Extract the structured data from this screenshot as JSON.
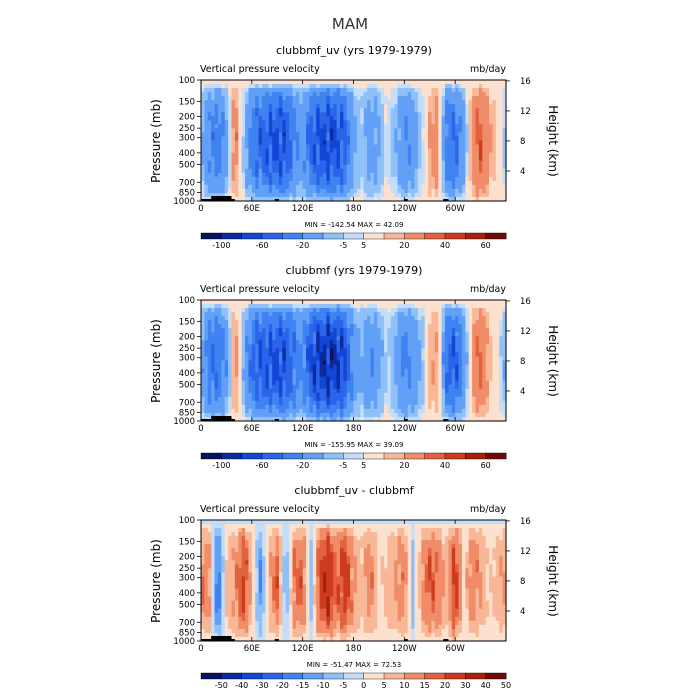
{
  "figure": {
    "title": "MAM"
  },
  "colorbars": {
    "full_fields": {
      "colors": [
        "#08115e",
        "#0a2a9e",
        "#1346d6",
        "#2a64e8",
        "#3f82f2",
        "#62a0f7",
        "#90c0f8",
        "#c4ddf8",
        "#fde1cf",
        "#f8b898",
        "#f08c68",
        "#e2613f",
        "#cd3b1f",
        "#a81e0f",
        "#6e0a07"
      ],
      "tick_labels": [
        "-100",
        "-60",
        "-20",
        "-5",
        "5",
        "20",
        "40",
        "60"
      ],
      "tick_edges": [
        1,
        3,
        5,
        7,
        8,
        10,
        12,
        14
      ]
    },
    "difference": {
      "colors": [
        "#08115e",
        "#0a2a9e",
        "#1346d6",
        "#2a64e8",
        "#3f82f2",
        "#62a0f7",
        "#90c0f8",
        "#c4ddf8",
        "#fde1cf",
        "#f8b898",
        "#f08c68",
        "#e2613f",
        "#cd3b1f",
        "#a81e0f",
        "#6e0a07"
      ],
      "tick_labels": [
        "-50",
        "-40",
        "-30",
        "-20",
        "-15",
        "-10",
        "-5",
        "0",
        "5",
        "10",
        "15",
        "20",
        "30",
        "40",
        "50"
      ],
      "tick_edges": [
        1,
        2,
        3,
        4,
        5,
        6,
        7,
        8,
        9,
        10,
        11,
        12,
        13,
        14,
        15
      ]
    }
  },
  "chart_data": [
    {
      "type": "heatmap",
      "title": "clubbmf_uv (yrs 1979-1979)",
      "subtitle_left": "Vertical pressure velocity",
      "subtitle_right": "mb/day",
      "ylabel": "Pressure (mb)",
      "ylabel_right": "Height (km)",
      "x_tick_labels": [
        "0",
        "60E",
        "120E",
        "180",
        "120W",
        "60W"
      ],
      "x_ticks_deg": [
        0,
        60,
        120,
        180,
        240,
        300
      ],
      "xlim_deg": [
        0,
        360
      ],
      "y_tick_labels": [
        "100",
        "150",
        "200",
        "250",
        "300",
        "400",
        "500",
        "700",
        "850",
        "1000"
      ],
      "y_ticks_mb": [
        100,
        150,
        200,
        250,
        300,
        400,
        500,
        700,
        850,
        1000
      ],
      "ylim_mb": [
        100,
        1000
      ],
      "y_scale": "log",
      "right_tick_labels": [
        "4",
        "8",
        "12",
        "16"
      ],
      "right_ticks_km": [
        4,
        8,
        12,
        16
      ],
      "min_max_text": "MIN = -142.54   MAX =  42.09",
      "colorbar": "full_fields",
      "min": -142.54,
      "max": 42.09,
      "profile_lon": [
        0,
        10,
        20,
        30,
        40,
        50,
        60,
        70,
        80,
        90,
        100,
        110,
        120,
        130,
        140,
        150,
        160,
        170,
        180,
        190,
        200,
        210,
        220,
        230,
        240,
        250,
        260,
        270,
        280,
        290,
        300,
        310,
        320,
        330,
        340,
        350,
        360
      ],
      "profile_value": [
        -20,
        -55,
        -70,
        -40,
        30,
        -15,
        -70,
        -90,
        -100,
        -110,
        -105,
        -60,
        -40,
        -90,
        -110,
        -115,
        -110,
        -90,
        -30,
        -20,
        -45,
        -30,
        -5,
        -25,
        -55,
        -40,
        -15,
        15,
        25,
        -70,
        -85,
        -35,
        20,
        35,
        15,
        5,
        -20
      ]
    },
    {
      "type": "heatmap",
      "title": "clubbmf (yrs 1979-1979)",
      "subtitle_left": "Vertical pressure velocity",
      "subtitle_right": "mb/day",
      "ylabel": "Pressure (mb)",
      "ylabel_right": "Height (km)",
      "x_tick_labels": [
        "0",
        "60E",
        "120E",
        "180",
        "120W",
        "60W"
      ],
      "x_ticks_deg": [
        0,
        60,
        120,
        180,
        240,
        300
      ],
      "xlim_deg": [
        0,
        360
      ],
      "y_tick_labels": [
        "100",
        "150",
        "200",
        "250",
        "300",
        "400",
        "500",
        "700",
        "850",
        "1000"
      ],
      "y_ticks_mb": [
        100,
        150,
        200,
        250,
        300,
        400,
        500,
        700,
        850,
        1000
      ],
      "ylim_mb": [
        100,
        1000
      ],
      "y_scale": "log",
      "right_tick_labels": [
        "4",
        "8",
        "12",
        "16"
      ],
      "right_ticks_km": [
        4,
        8,
        12,
        16
      ],
      "min_max_text": "MIN = -155.95   MAX =  39.09",
      "colorbar": "full_fields",
      "min": -155.95,
      "max": 39.09,
      "profile_lon": [
        0,
        10,
        20,
        30,
        40,
        50,
        60,
        70,
        80,
        90,
        100,
        110,
        120,
        130,
        140,
        150,
        160,
        170,
        180,
        190,
        200,
        210,
        220,
        230,
        240,
        250,
        260,
        270,
        280,
        290,
        300,
        310,
        320,
        330,
        340,
        350,
        360
      ],
      "profile_value": [
        -35,
        -70,
        -80,
        -45,
        25,
        -25,
        -80,
        -100,
        -105,
        -110,
        -110,
        -75,
        -55,
        -110,
        -130,
        -140,
        -130,
        -110,
        -45,
        -30,
        -55,
        -35,
        -10,
        -35,
        -65,
        -50,
        -25,
        10,
        15,
        -80,
        -100,
        -45,
        15,
        30,
        10,
        0,
        -30
      ]
    },
    {
      "type": "heatmap",
      "title": "clubbmf_uv - clubbmf",
      "subtitle_left": "Vertical pressure velocity",
      "subtitle_right": "mb/day",
      "ylabel": "Pressure (mb)",
      "ylabel_right": "Height (km)",
      "x_tick_labels": [
        "0",
        "60E",
        "120E",
        "180",
        "120W",
        "60W"
      ],
      "x_ticks_deg": [
        0,
        60,
        120,
        180,
        240,
        300
      ],
      "xlim_deg": [
        0,
        360
      ],
      "y_tick_labels": [
        "100",
        "150",
        "200",
        "250",
        "300",
        "400",
        "500",
        "700",
        "850",
        "1000"
      ],
      "y_ticks_mb": [
        100,
        150,
        200,
        250,
        300,
        400,
        500,
        700,
        850,
        1000
      ],
      "ylim_mb": [
        100,
        1000
      ],
      "y_scale": "log",
      "right_tick_labels": [
        "4",
        "8",
        "12",
        "16"
      ],
      "right_ticks_km": [
        4,
        8,
        12,
        16
      ],
      "min_max_text": "MIN = -51.47   MAX =  72.53",
      "colorbar": "difference",
      "min": -51.47,
      "max": 72.53,
      "profile_lon": [
        0,
        10,
        20,
        30,
        40,
        50,
        60,
        70,
        80,
        90,
        100,
        110,
        120,
        130,
        140,
        150,
        160,
        170,
        180,
        190,
        200,
        210,
        220,
        230,
        240,
        250,
        260,
        270,
        280,
        290,
        300,
        310,
        320,
        330,
        340,
        350,
        360
      ],
      "profile_value": [
        20,
        15,
        -30,
        10,
        15,
        30,
        10,
        -20,
        10,
        25,
        -15,
        20,
        25,
        -10,
        30,
        40,
        20,
        35,
        15,
        10,
        20,
        5,
        10,
        15,
        20,
        -10,
        15,
        25,
        20,
        10,
        35,
        5,
        20,
        15,
        5,
        10,
        15
      ]
    }
  ]
}
